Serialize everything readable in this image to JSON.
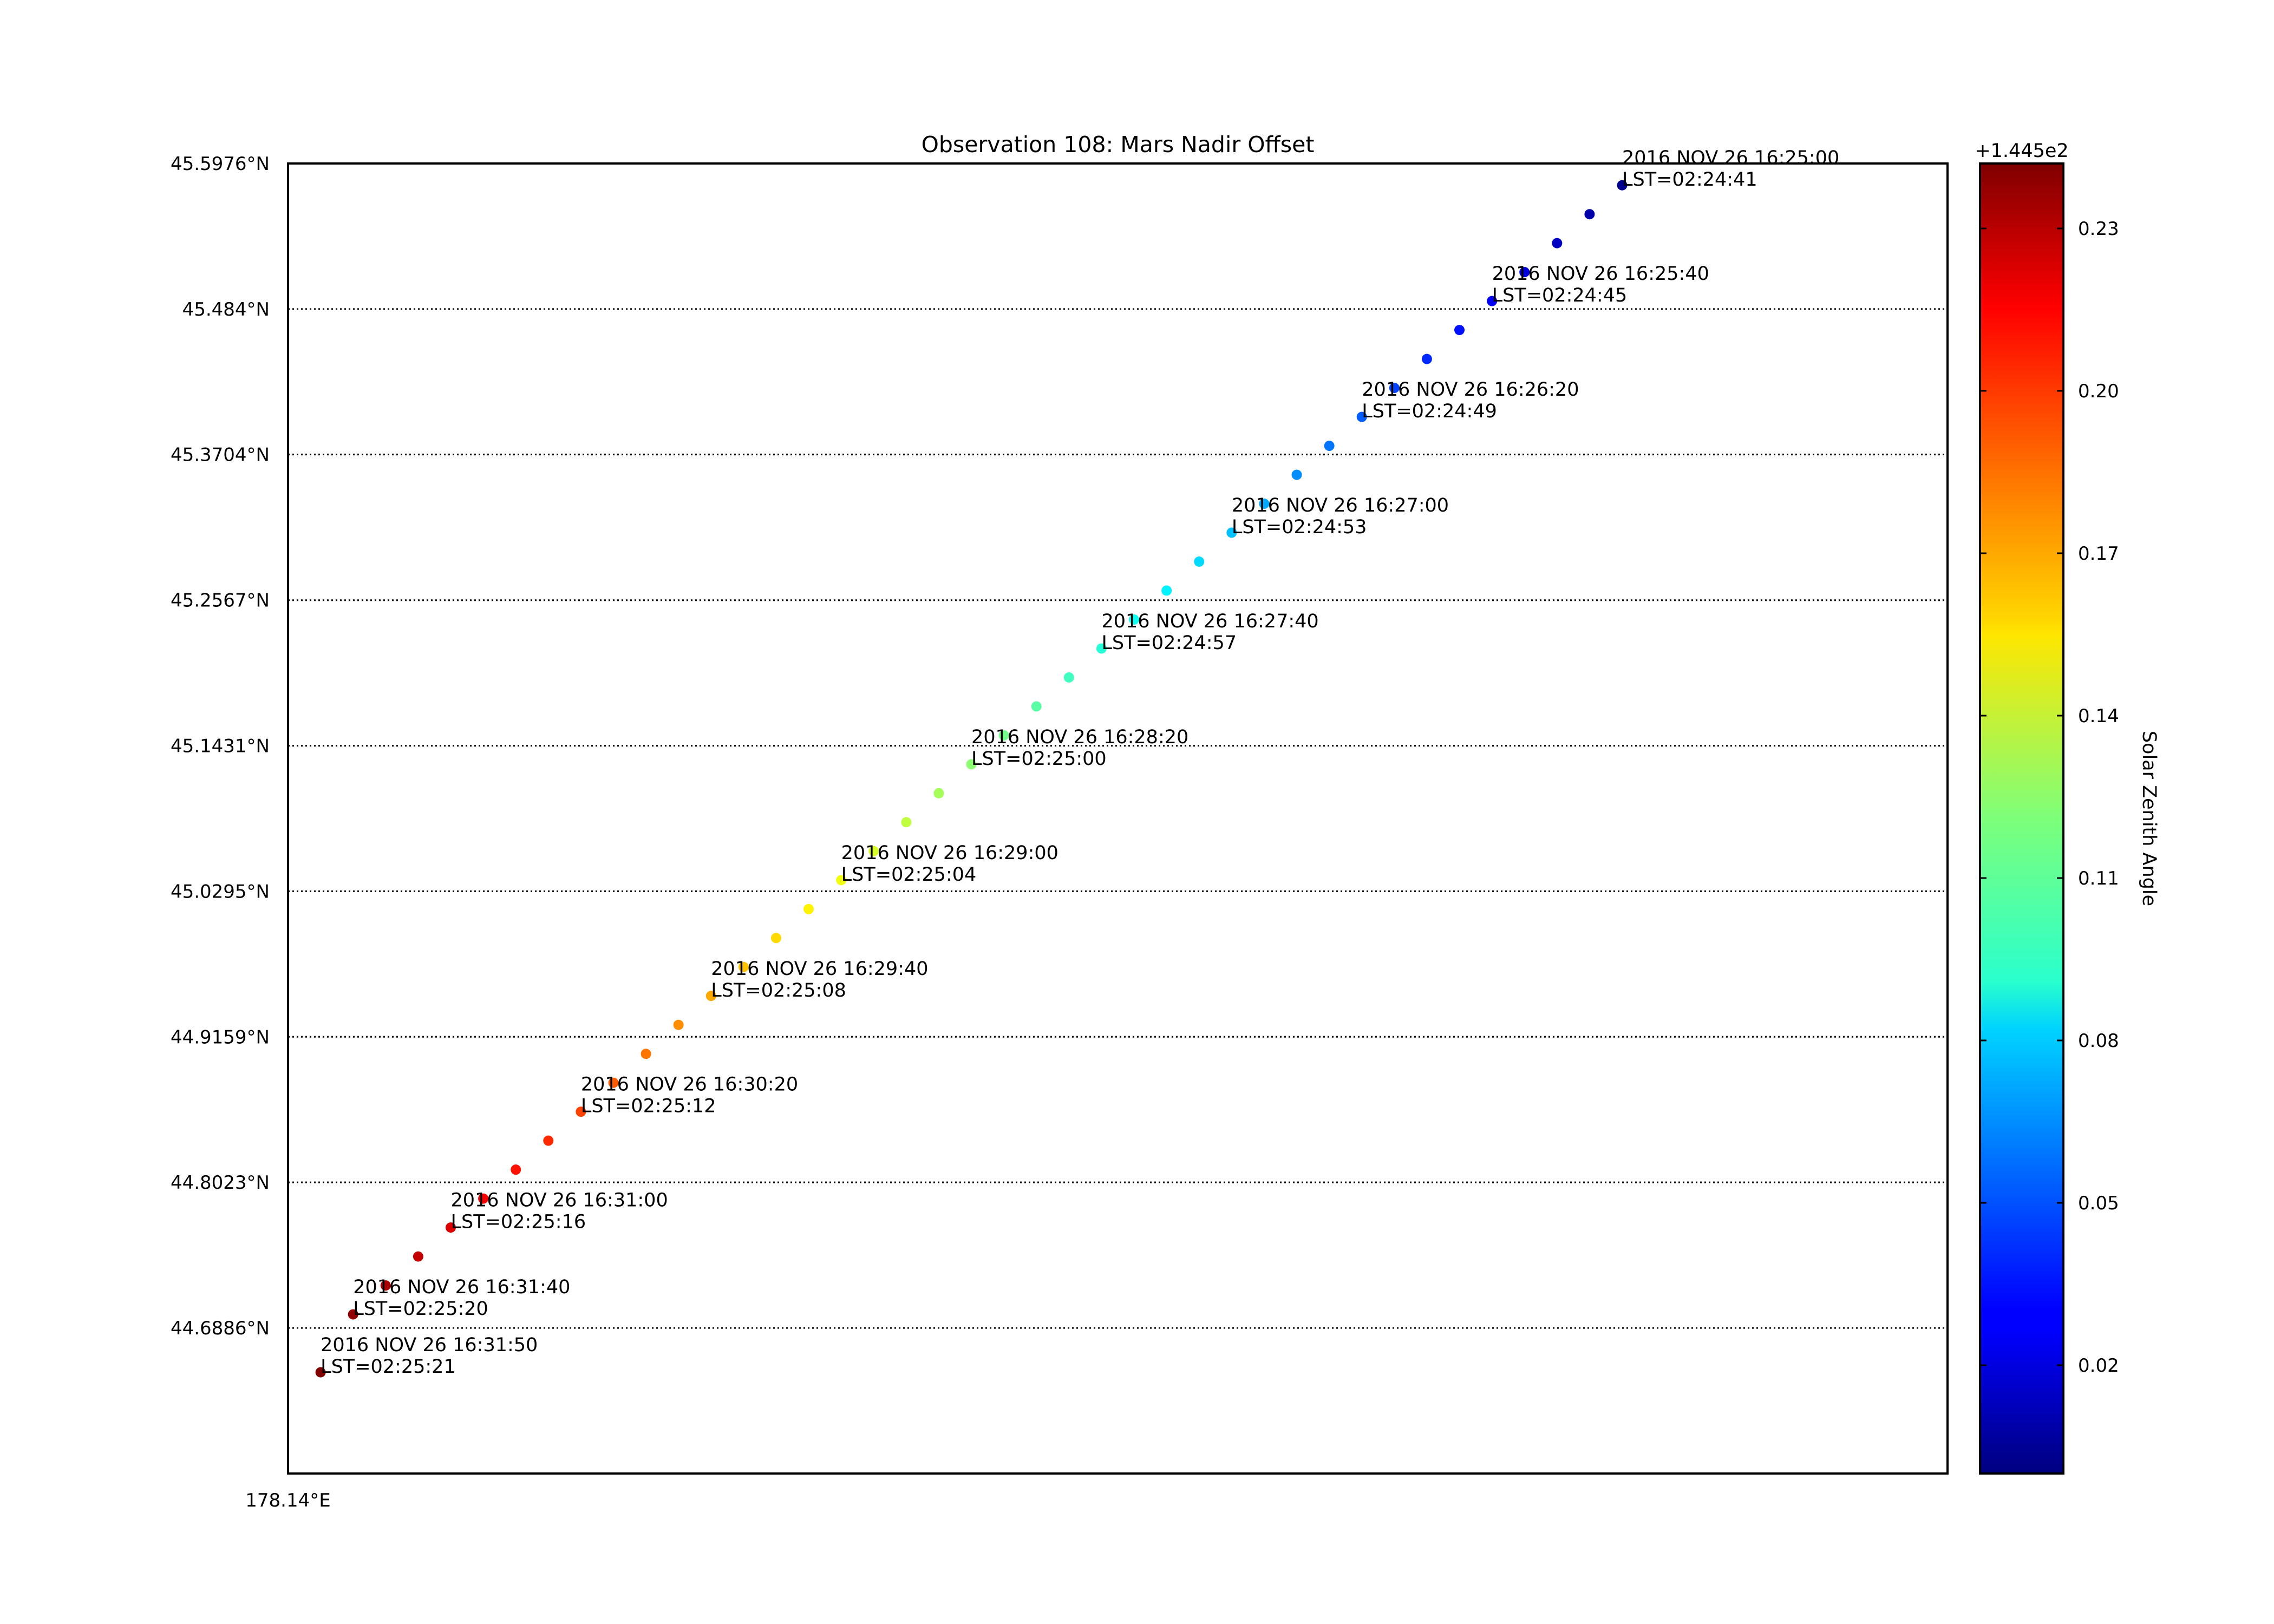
{
  "chart_data": {
    "type": "scatter",
    "title": "Observation 108: Mars Nadir Offset",
    "xlabel": "",
    "ylabel": "",
    "x_tick_labels": [
      "178.14°E"
    ],
    "y_tick_labels": [
      "45.5976°N",
      "45.484°N",
      "45.3704°N",
      "45.2567°N",
      "45.1431°N",
      "45.0295°N",
      "44.9159°N",
      "44.8023°N",
      "44.6886°N"
    ],
    "y_tick_values": [
      45.5976,
      45.484,
      45.3704,
      45.2567,
      45.1431,
      45.0295,
      44.9159,
      44.8023,
      44.6886
    ],
    "xlim": [
      0,
      51
    ],
    "ylim": [
      44.575,
      45.5976
    ],
    "grid": "horizontal-dotted",
    "colorbar": {
      "label": "Solar Zenith Angle",
      "offset_text": "+1.445e2",
      "tick_labels": [
        "0.23",
        "0.20",
        "0.17",
        "0.14",
        "0.11",
        "0.08",
        "0.05",
        "0.02"
      ],
      "tick_values": [
        0.23,
        0.2,
        0.17,
        0.14,
        0.11,
        0.08,
        0.05,
        0.02
      ],
      "range": [
        0.0,
        0.242
      ],
      "colormap": "jet"
    },
    "points": {
      "x": [
        41,
        40,
        39,
        38,
        37,
        36,
        35,
        34,
        33,
        32,
        31,
        30,
        29,
        28,
        27,
        26,
        25,
        24,
        23,
        22,
        21,
        20,
        19,
        18,
        17,
        16,
        15,
        14,
        13,
        12,
        11,
        10,
        9,
        8,
        7,
        6,
        5,
        4,
        3,
        2,
        1
      ],
      "y": [
        45.5806,
        45.558,
        45.5354,
        45.5128,
        45.4902,
        45.4676,
        45.445,
        45.4224,
        45.3998,
        45.3772,
        45.3546,
        45.332,
        45.3094,
        45.2868,
        45.2642,
        45.2416,
        45.219,
        45.1964,
        45.1738,
        45.1512,
        45.1286,
        45.106,
        45.0834,
        45.0608,
        45.0382,
        45.0156,
        44.993,
        44.9704,
        44.9478,
        44.9252,
        44.9026,
        44.88,
        44.8574,
        44.8348,
        44.8122,
        44.7896,
        44.767,
        44.7444,
        44.7218,
        44.6992,
        44.654
      ],
      "solar_zenith_offset": [
        0.004,
        0.01,
        0.016,
        0.022,
        0.028,
        0.034,
        0.04,
        0.046,
        0.052,
        0.058,
        0.064,
        0.07,
        0.076,
        0.082,
        0.088,
        0.094,
        0.1,
        0.106,
        0.112,
        0.118,
        0.124,
        0.13,
        0.136,
        0.142,
        0.148,
        0.154,
        0.16,
        0.166,
        0.172,
        0.178,
        0.184,
        0.19,
        0.196,
        0.202,
        0.208,
        0.214,
        0.22,
        0.226,
        0.232,
        0.238,
        0.242
      ]
    },
    "annotations": [
      {
        "point_index": 0,
        "line1": "2016 NOV 26 16:25:00",
        "line2": "LST=02:24:41"
      },
      {
        "point_index": 4,
        "line1": "2016 NOV 26 16:25:40",
        "line2": "LST=02:24:45"
      },
      {
        "point_index": 8,
        "line1": "2016 NOV 26 16:26:20",
        "line2": "LST=02:24:49"
      },
      {
        "point_index": 12,
        "line1": "2016 NOV 26 16:27:00",
        "line2": "LST=02:24:53"
      },
      {
        "point_index": 16,
        "line1": "2016 NOV 26 16:27:40",
        "line2": "LST=02:24:57"
      },
      {
        "point_index": 20,
        "line1": "2016 NOV 26 16:28:20",
        "line2": "LST=02:25:00"
      },
      {
        "point_index": 24,
        "line1": "2016 NOV 26 16:29:00",
        "line2": "LST=02:25:04"
      },
      {
        "point_index": 28,
        "line1": "2016 NOV 26 16:29:40",
        "line2": "LST=02:25:08"
      },
      {
        "point_index": 32,
        "line1": "2016 NOV 26 16:30:20",
        "line2": "LST=02:25:12"
      },
      {
        "point_index": 36,
        "line1": "2016 NOV 26 16:31:00",
        "line2": "LST=02:25:16"
      },
      {
        "point_index": 39,
        "line1": "2016 NOV 26 16:31:40",
        "line2": "LST=02:25:20"
      },
      {
        "point_index": 40,
        "line1": "2016 NOV 26 16:31:50",
        "line2": "LST=02:25:21"
      }
    ]
  }
}
